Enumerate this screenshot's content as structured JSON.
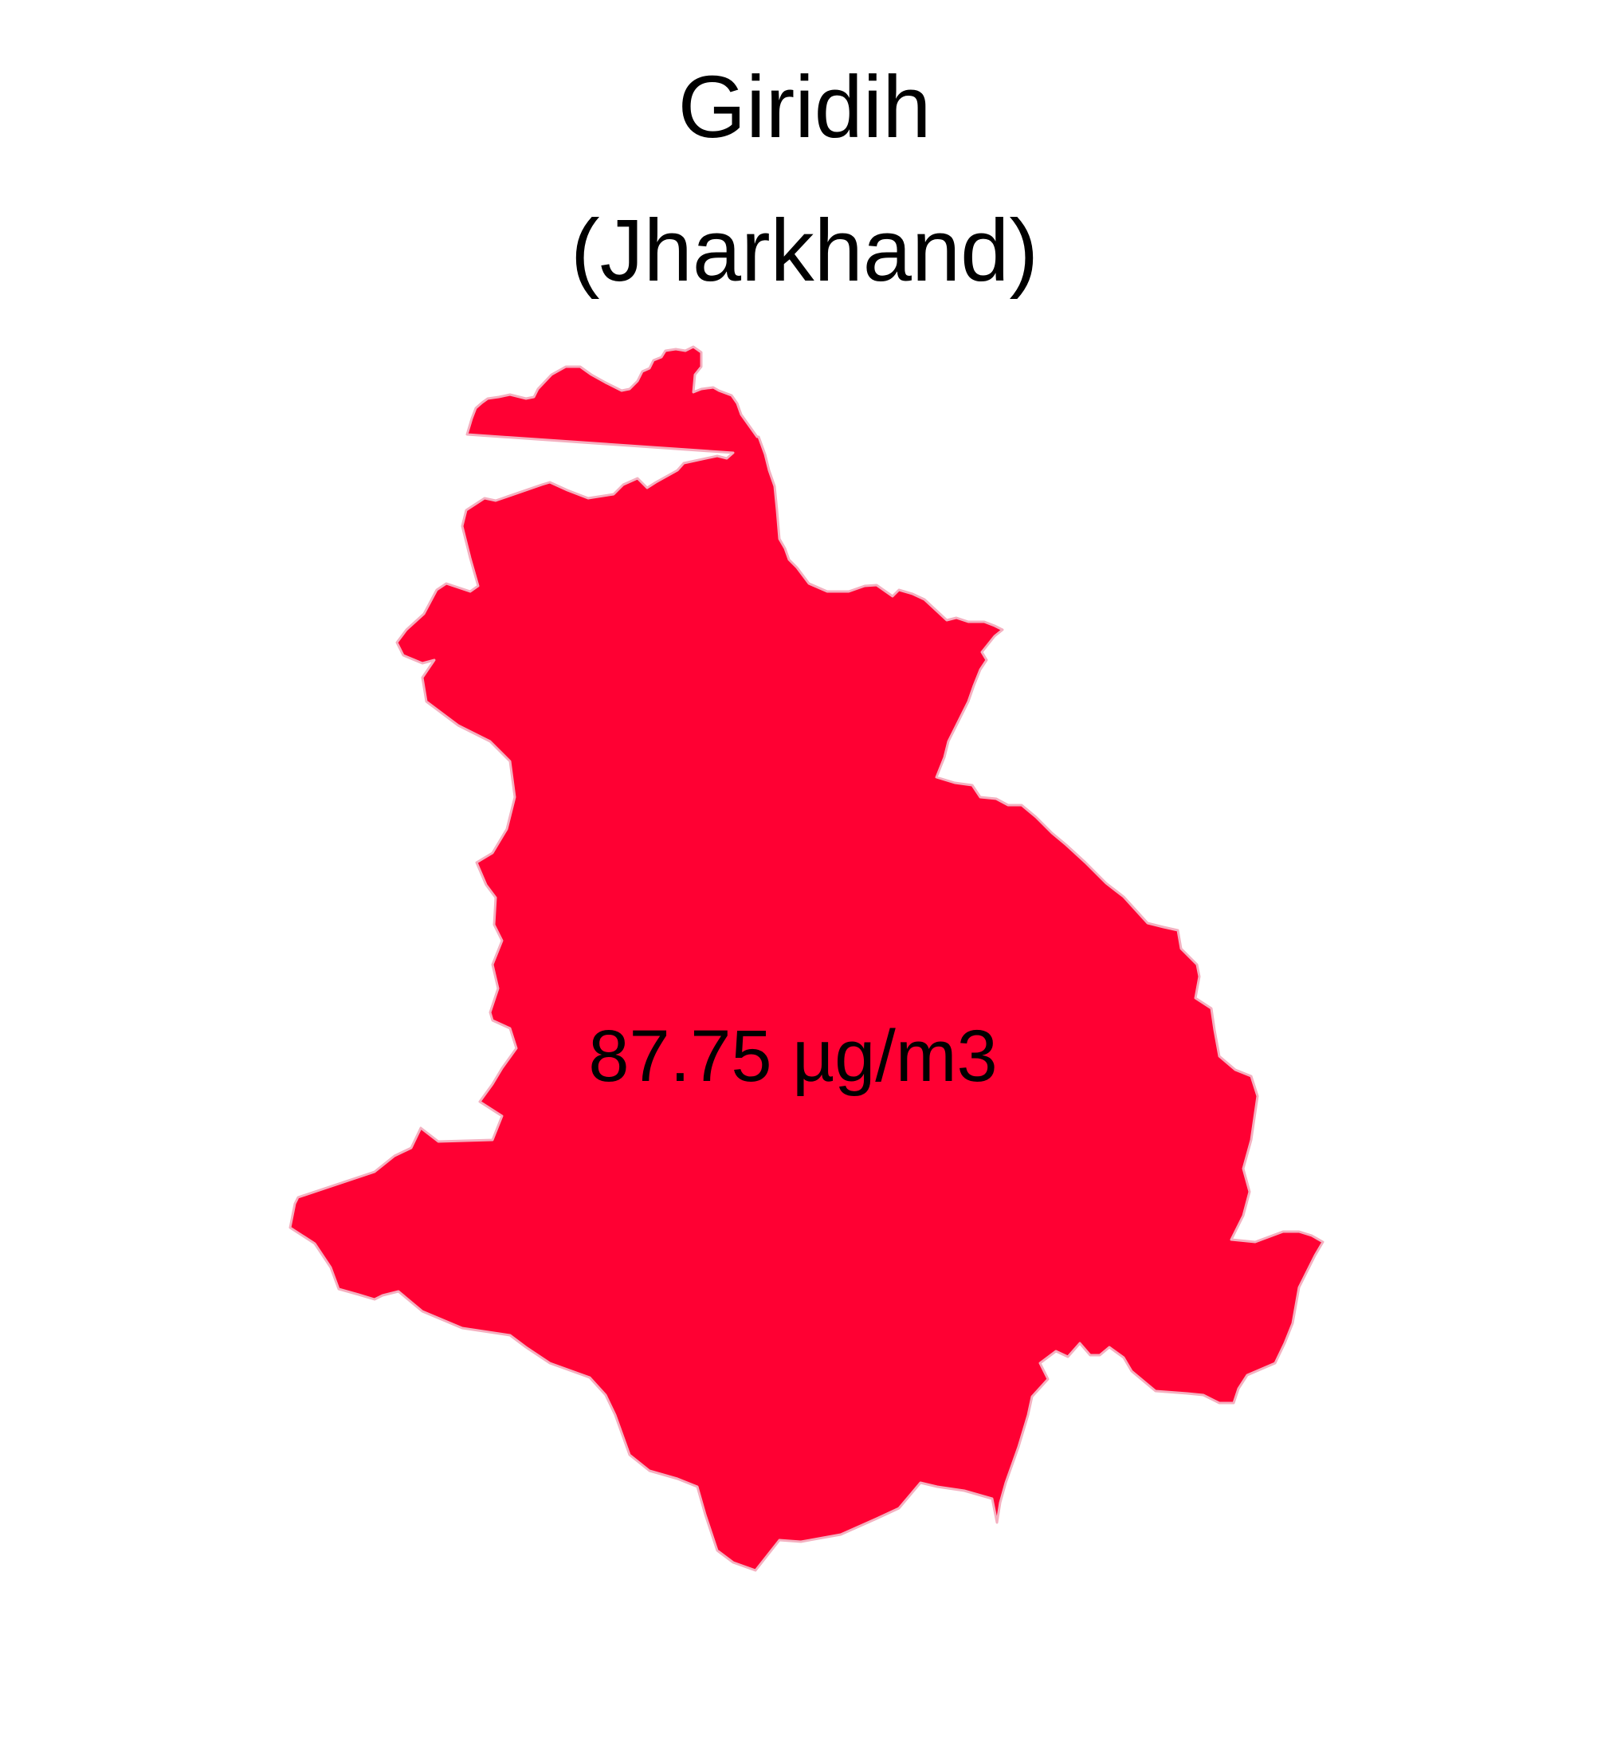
{
  "map": {
    "title_line1": "Giridih",
    "title_line2": "(Jharkhand)",
    "region_name": "Giridih",
    "value_label": "87.75 µg/m3",
    "value": 87.75,
    "unit": "µg/m3",
    "fill_color": "#FF0033",
    "stroke_color": "#F4B0C0"
  }
}
